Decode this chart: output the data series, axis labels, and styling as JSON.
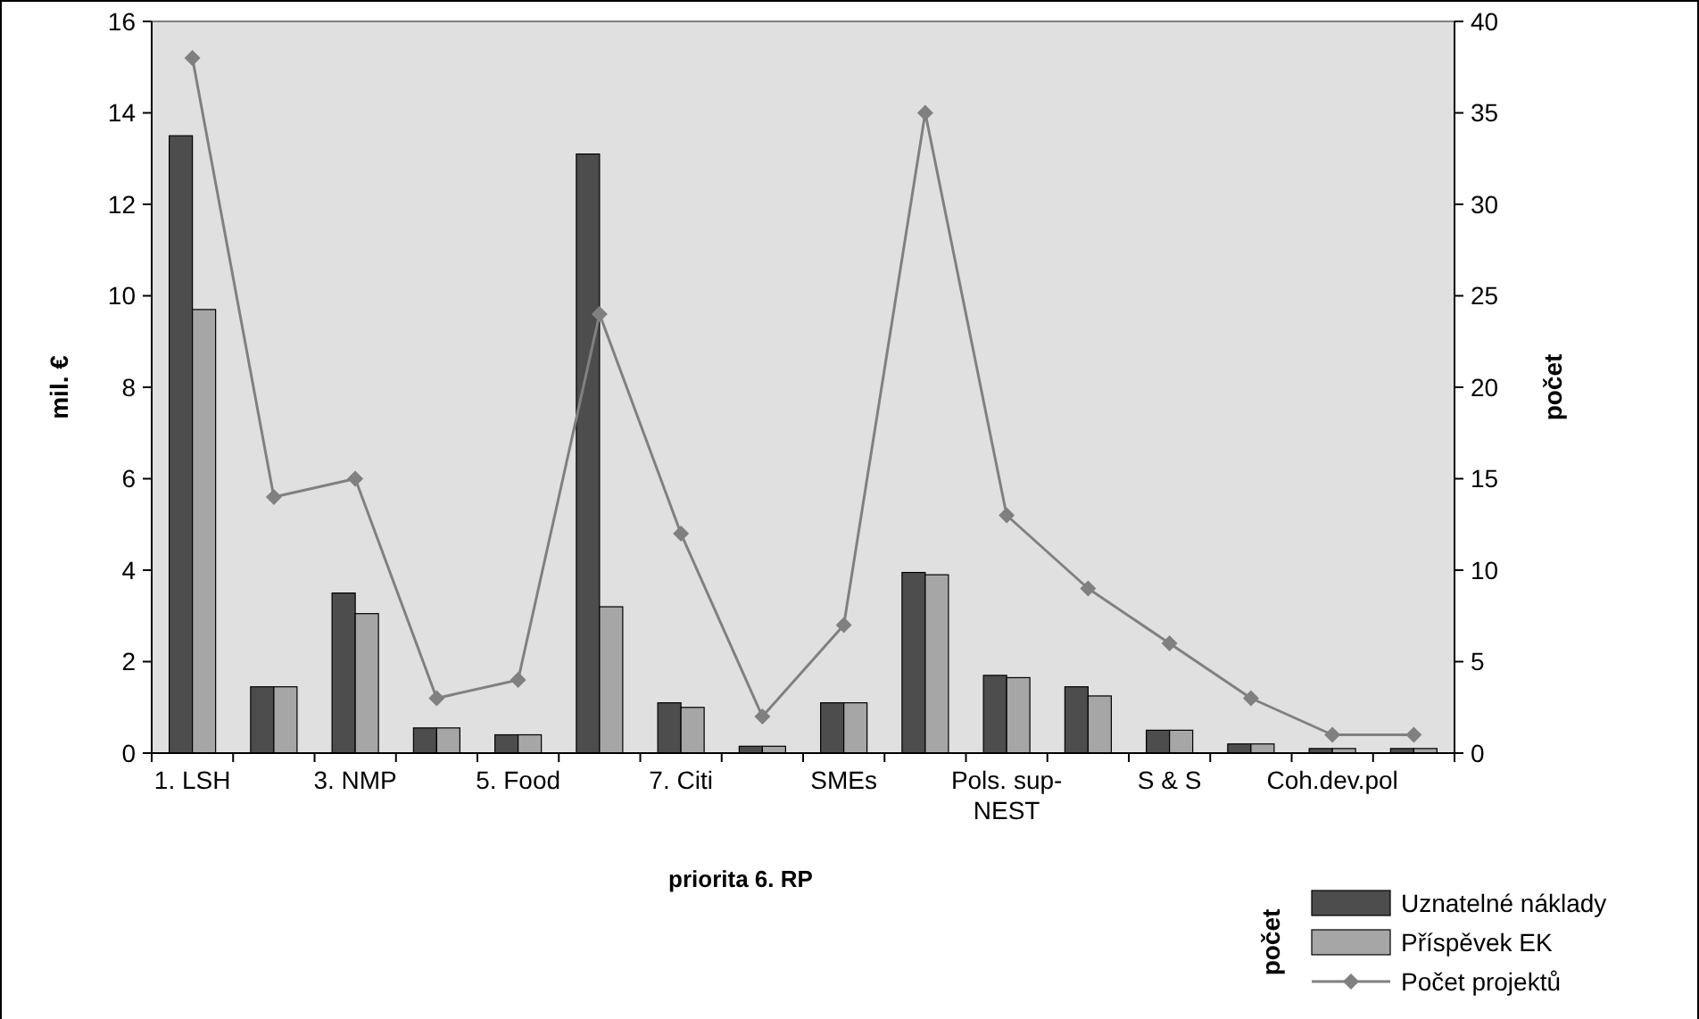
{
  "chart_data": {
    "type": "bar",
    "categories": [
      "1. LSH",
      null,
      "3. NMP",
      null,
      "5. Food",
      null,
      "7. Citi",
      null,
      "SMEs",
      null,
      "Pols. sup-NEST",
      null,
      "S & S",
      null,
      "Coh.dev.pol",
      null
    ],
    "series": [
      {
        "name": "Uznatelné náklady",
        "color": "#4d4d4d",
        "values": [
          13.5,
          1.45,
          3.5,
          0.55,
          0.4,
          13.1,
          1.1,
          0.15,
          1.1,
          3.95,
          1.7,
          1.45,
          0.5,
          0.2,
          0.1,
          0.1
        ]
      },
      {
        "name": "Příspěvek EK",
        "color": "#a6a6a6",
        "values": [
          9.7,
          1.45,
          3.05,
          0.55,
          0.4,
          3.2,
          1.0,
          0.15,
          1.1,
          3.9,
          1.65,
          1.25,
          0.5,
          0.2,
          0.1,
          0.1
        ]
      },
      {
        "name": "Počet projektů",
        "type": "line",
        "axis": "y2",
        "color": "#808080",
        "marker": "diamond",
        "values": [
          38,
          14,
          15,
          3,
          4,
          24,
          12,
          2,
          7,
          35,
          13,
          9,
          6,
          3,
          1,
          1
        ]
      }
    ],
    "xlabel": "priorita 6. RP",
    "ylabel": "mil. €",
    "y2label": "počet",
    "ylim": [
      0,
      16
    ],
    "yticks": [
      0,
      2,
      4,
      6,
      8,
      10,
      12,
      14,
      16
    ],
    "y2lim": [
      0,
      40
    ],
    "y2ticks": [
      0,
      5,
      10,
      15,
      20,
      25,
      30,
      35,
      40
    ],
    "annotations": [
      "počet"
    ],
    "legend": "bottom right",
    "grid": false
  }
}
